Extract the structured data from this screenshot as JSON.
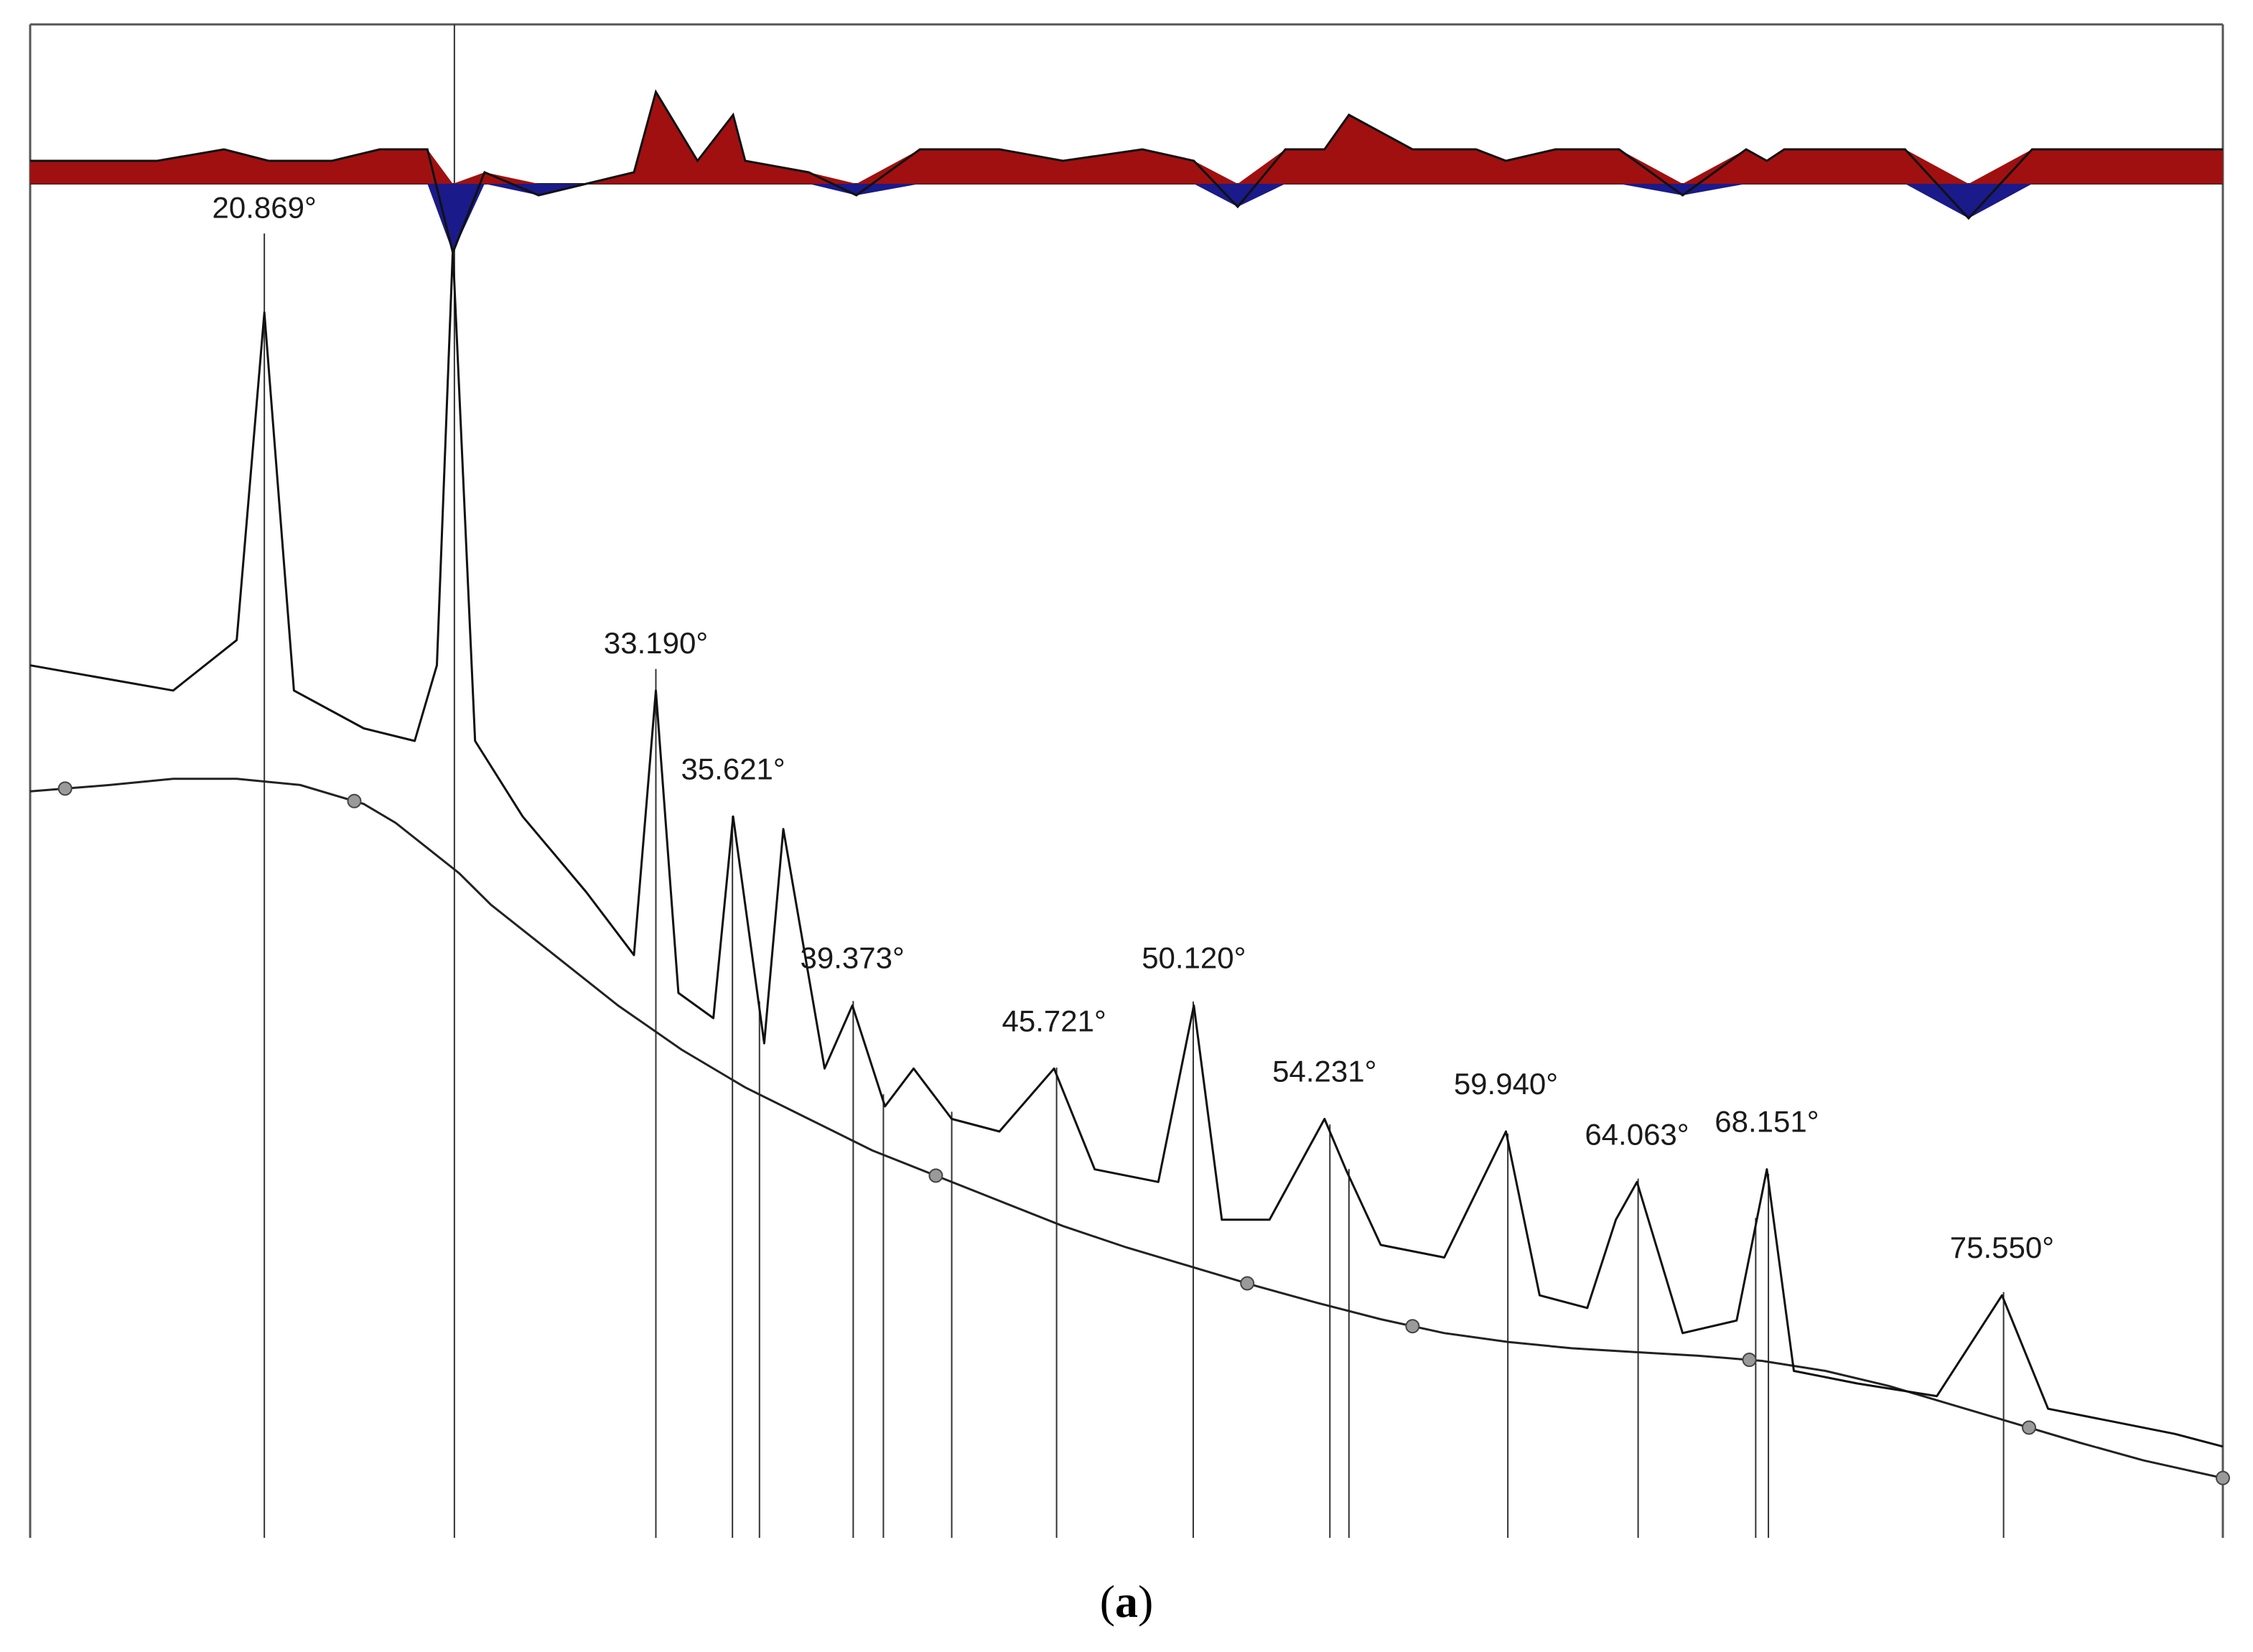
{
  "figure": {
    "caption_prefix": "(",
    "caption_letter": "a",
    "caption_suffix": ")"
  },
  "colors": {
    "pattern": "#111111",
    "background_line": "#222222",
    "marker_line": "#333333",
    "difference_positive": "#a01010",
    "difference_negative": "#1a1a8a",
    "anchor_point": "#9a9a9a"
  },
  "chart_data": {
    "type": "line",
    "title": "",
    "xlabel": "",
    "ylabel": "",
    "xlim": [
      13.5,
      82.5
    ],
    "ylim": [
      0,
      100
    ],
    "grid": false,
    "legend": "none",
    "series": [
      {
        "x": [
          13.5,
          18.0,
          20.0,
          20.869,
          21.8,
          24.0,
          25.6,
          26.3,
          26.8,
          27.5,
          29.0,
          31.0,
          32.5,
          33.19,
          33.9,
          35.0,
          35.621,
          36.6,
          37.2,
          38.5,
          39.373,
          40.4,
          41.3,
          42.5,
          44.0,
          45.721,
          47.0,
          49.0,
          50.12,
          51.0,
          52.5,
          54.231,
          54.9,
          56.0,
          58.0,
          59.94,
          61.0,
          62.5,
          63.4,
          64.063,
          65.5,
          67.2,
          68.151,
          69.0,
          71.0,
          73.5,
          75.55,
          77.0,
          79.0,
          81.0,
          82.5
        ],
        "y": [
          66,
          64,
          68,
          94,
          64,
          61,
          60,
          66,
          99,
          60,
          54,
          48,
          43,
          64,
          40,
          38,
          54,
          36,
          53,
          34,
          39,
          31,
          34,
          30,
          29,
          34,
          26,
          25,
          39,
          22,
          22,
          30,
          26,
          20,
          19,
          29,
          16,
          15,
          22,
          25,
          13,
          14,
          26,
          10,
          9,
          8,
          16,
          7,
          6,
          5,
          4
        ]
      },
      {
        "x": [
          13.5,
          16.0,
          18.0,
          20.0,
          22.0,
          24.0,
          25.0,
          26.0,
          27.0,
          28.0,
          30.0,
          32.0,
          34.0,
          36.0,
          38.0,
          40.0,
          42.0,
          44.0,
          46.0,
          48.0,
          50.0,
          52.0,
          54.0,
          56.0,
          58.0,
          60.0,
          62.0,
          64.0,
          66.0,
          68.0,
          70.0,
          72.0,
          74.0,
          76.0,
          78.0,
          80.0,
          82.5
        ],
        "y": [
          56,
          56.5,
          57,
          57,
          56.5,
          55,
          53.5,
          51.5,
          49.5,
          47,
          43,
          39,
          35.5,
          32.5,
          30,
          27.5,
          25.5,
          23.5,
          21.5,
          19.8,
          18.3,
          16.8,
          15.4,
          14.1,
          13.0,
          12.3,
          11.8,
          11.5,
          11.2,
          10.8,
          10.0,
          8.8,
          7.3,
          5.8,
          4.3,
          2.9,
          1.5
        ]
      },
      {
        "x": [
          13.5,
          17.5,
          19.6,
          21.0,
          23.0,
          24.5,
          26.0,
          26.8,
          27.8,
          29.5,
          31.0,
          32.5,
          33.19,
          34.5,
          35.621,
          36.0,
          38.0,
          39.5,
          41.5,
          44.0,
          46.0,
          48.5,
          50.12,
          51.5,
          53.0,
          54.231,
          55.0,
          57.0,
          59.0,
          59.94,
          61.5,
          63.5,
          65.5,
          67.5,
          68.151,
          68.7,
          70.5,
          72.5,
          74.5,
          76.5,
          78.5,
          80.5,
          82.5
        ],
        "y": [
          2,
          2,
          3,
          2,
          2,
          3,
          3,
          -6,
          1,
          -1,
          0,
          1,
          8,
          2,
          6,
          2,
          1,
          -1,
          3,
          3,
          2,
          3,
          2,
          -2,
          3,
          3,
          6,
          3,
          3,
          2,
          3,
          3,
          -1,
          3,
          2,
          3,
          3,
          3,
          -3,
          3,
          3,
          3,
          3
        ]
      }
    ],
    "peak_labels": [
      "20.869°",
      "33.190°",
      "35.621°",
      "39.373°",
      "45.721°",
      "50.120°",
      "54.231°",
      "59.940°",
      "64.063°",
      "68.151°",
      "75.550°"
    ],
    "peak_positions": [
      20.869,
      33.19,
      35.621,
      39.373,
      45.721,
      50.12,
      54.231,
      59.94,
      64.063,
      68.151,
      75.55
    ],
    "reflection_markers": [
      20.869,
      26.85,
      33.19,
      35.6,
      36.45,
      39.4,
      40.35,
      42.5,
      45.8,
      50.1,
      54.4,
      55.0,
      60.0,
      64.1,
      67.8,
      68.2,
      75.6
    ],
    "background_points": [
      14.6,
      23.7,
      42.0,
      51.8,
      57.0,
      67.6,
      76.4,
      82.5
    ]
  }
}
